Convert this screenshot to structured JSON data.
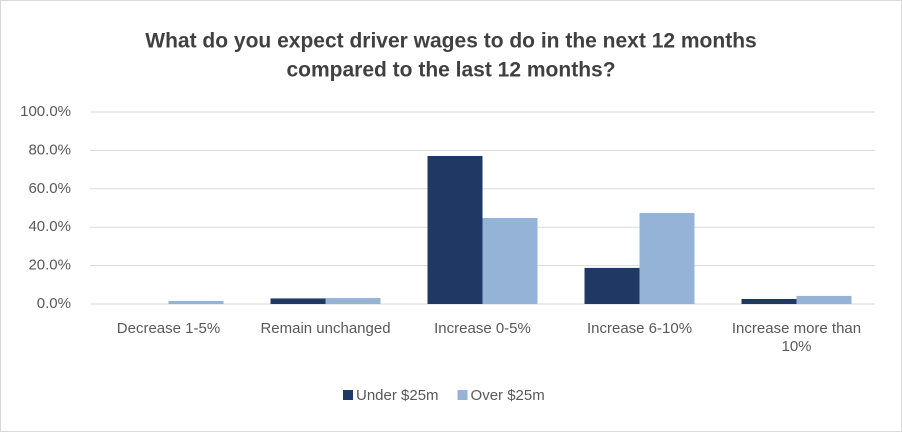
{
  "chart_data": {
    "type": "bar",
    "title": [
      "What do you expect driver wages to do in the next 12 months",
      "compared to the last 12 months?"
    ],
    "categories": [
      "Decrease 1-5%",
      "Remain unchanged",
      "Increase 0-5%",
      "Increase 6-10%",
      "Increase more than 10%"
    ],
    "series": [
      {
        "name": "Under $25m",
        "color": "#1f3864",
        "values": [
          0,
          2.9,
          77.1,
          18.8,
          2.6
        ]
      },
      {
        "name": "Over $25m",
        "color": "#95b3d7",
        "values": [
          1.6,
          3.1,
          44.8,
          47.4,
          4.2
        ]
      }
    ],
    "ylim": [
      0,
      100
    ],
    "yticks": [
      {
        "value": 0,
        "label": "0.0%"
      },
      {
        "value": 20,
        "label": "20.0%"
      },
      {
        "value": 40,
        "label": "40.0%"
      },
      {
        "value": 60,
        "label": "60.0%"
      },
      {
        "value": 80,
        "label": "80.0%"
      },
      {
        "value": 100,
        "label": "100.0%"
      }
    ],
    "grid": true,
    "legend": "bottom"
  }
}
